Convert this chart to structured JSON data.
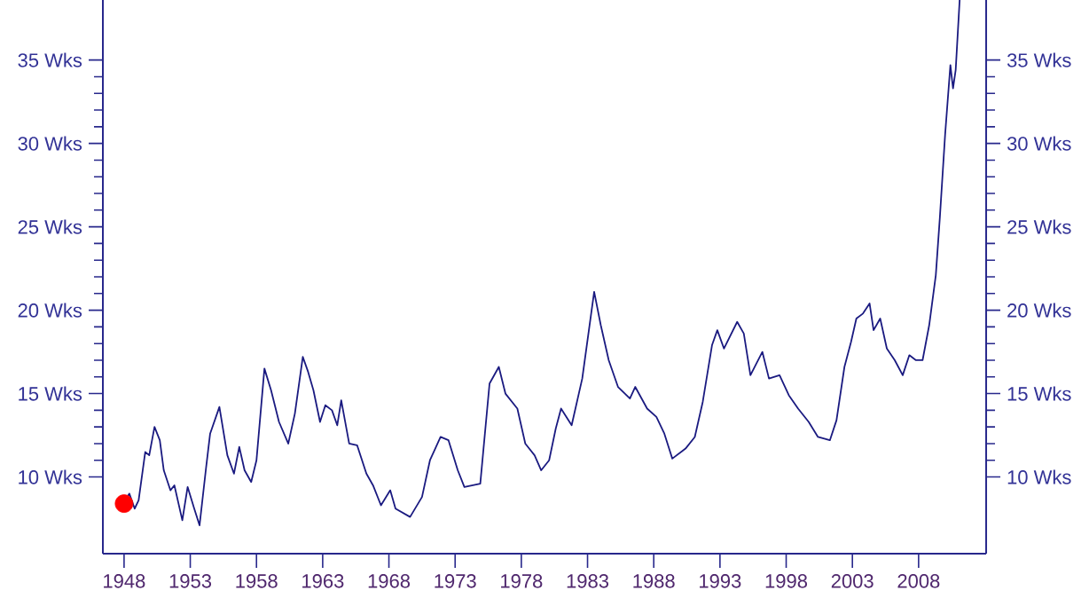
{
  "chart_data": {
    "type": "line",
    "xlim": [
      1946.4,
      2013.1
    ],
    "xticks": [
      1948,
      1953,
      1958,
      1963,
      1968,
      1973,
      1978,
      1983,
      1988,
      1993,
      1998,
      2003,
      2008
    ],
    "ylim": [
      5.4,
      38.6
    ],
    "yticks": [
      {
        "value": 10,
        "label": "10 Wks"
      },
      {
        "value": 15,
        "label": "15 Wks"
      },
      {
        "value": 20,
        "label": "20 Wks"
      },
      {
        "value": 25,
        "label": "25 Wks"
      },
      {
        "value": 30,
        "label": "30 Wks"
      },
      {
        "value": 35,
        "label": "35 Wks"
      }
    ],
    "y2lim": [
      5.4,
      38.6
    ],
    "y2ticks": [
      {
        "value": 10,
        "label": "10 Wks"
      },
      {
        "value": 15,
        "label": "15 Wks"
      },
      {
        "value": 20,
        "label": "20 Wks"
      },
      {
        "value": 25,
        "label": "25 Wks"
      },
      {
        "value": 30,
        "label": "30 Wks"
      },
      {
        "value": 35,
        "label": "35 Wks"
      }
    ],
    "grid": false,
    "series": [
      {
        "color": "#1a1a80",
        "marker": "none",
        "line_style": "solid",
        "x": [
          1948.0,
          1948.4,
          1948.8,
          1949.1,
          1949.6,
          1949.9,
          1950.3,
          1950.7,
          1951.0,
          1951.5,
          1951.8,
          1952.4,
          1952.8,
          1953.3,
          1953.7,
          1954.2,
          1954.5,
          1955.2,
          1955.8,
          1956.3,
          1956.7,
          1957.1,
          1957.6,
          1958.0,
          1958.6,
          1959.1,
          1959.7,
          1960.4,
          1960.9,
          1961.5,
          1961.9,
          1962.3,
          1962.8,
          1963.2,
          1963.7,
          1964.1,
          1964.4,
          1965.0,
          1965.6,
          1966.3,
          1966.8,
          1967.4,
          1968.1,
          1968.5,
          1969.6,
          1970.5,
          1971.1,
          1971.9,
          1972.5,
          1973.2,
          1973.7,
          1974.9,
          1975.6,
          1976.3,
          1976.8,
          1977.7,
          1978.3,
          1979.0,
          1979.5,
          1980.1,
          1980.6,
          1981.0,
          1981.8,
          1982.6,
          1983.5,
          1984.0,
          1984.6,
          1985.3,
          1986.2,
          1986.6,
          1987.5,
          1988.2,
          1988.8,
          1989.4,
          1990.4,
          1991.1,
          1991.7,
          1992.4,
          1992.8,
          1993.3,
          1994.3,
          1994.8,
          1995.3,
          1996.2,
          1996.7,
          1997.5,
          1998.2,
          1998.9,
          1999.7,
          2000.4,
          2001.3,
          2001.8,
          2002.4,
          2002.9,
          2003.3,
          2003.8,
          2004.3,
          2004.6,
          2005.1,
          2005.6,
          2006.2,
          2006.8,
          2007.3,
          2007.8,
          2008.3,
          2008.8,
          2009.3,
          2009.6,
          2010.0,
          2010.4,
          2010.6,
          2010.8,
          2011.1
        ],
        "values": [
          8.5,
          9.0,
          8.1,
          8.6,
          11.5,
          11.3,
          13.0,
          12.2,
          10.4,
          9.2,
          9.5,
          7.4,
          9.4,
          8.1,
          7.1,
          10.6,
          12.6,
          14.2,
          11.3,
          10.2,
          11.8,
          10.4,
          9.7,
          11.0,
          16.5,
          15.2,
          13.3,
          12.0,
          13.8,
          17.2,
          16.3,
          15.2,
          13.3,
          14.3,
          14.0,
          13.1,
          14.6,
          12.0,
          11.9,
          10.2,
          9.5,
          8.3,
          9.2,
          8.1,
          7.6,
          8.8,
          11.0,
          12.4,
          12.2,
          10.4,
          9.4,
          9.6,
          15.6,
          16.6,
          15.0,
          14.1,
          12.0,
          11.3,
          10.4,
          11.0,
          12.9,
          14.1,
          13.1,
          15.9,
          21.1,
          19.1,
          17.0,
          15.4,
          14.7,
          15.4,
          14.1,
          13.6,
          12.6,
          11.1,
          11.7,
          12.4,
          14.5,
          17.9,
          18.8,
          17.7,
          19.3,
          18.6,
          16.1,
          17.5,
          15.9,
          16.1,
          14.9,
          14.1,
          13.3,
          12.4,
          12.2,
          13.4,
          16.6,
          18.1,
          19.5,
          19.8,
          20.4,
          18.8,
          19.5,
          17.7,
          17.0,
          16.1,
          17.3,
          17.0,
          17.0,
          19.1,
          22.1,
          25.5,
          30.5,
          34.7,
          33.3,
          34.4,
          38.6
        ]
      },
      {
        "type": "scatter",
        "color": "#ff0000",
        "marker": "circle",
        "x": [
          1948
        ],
        "values": [
          8.4
        ]
      }
    ]
  }
}
